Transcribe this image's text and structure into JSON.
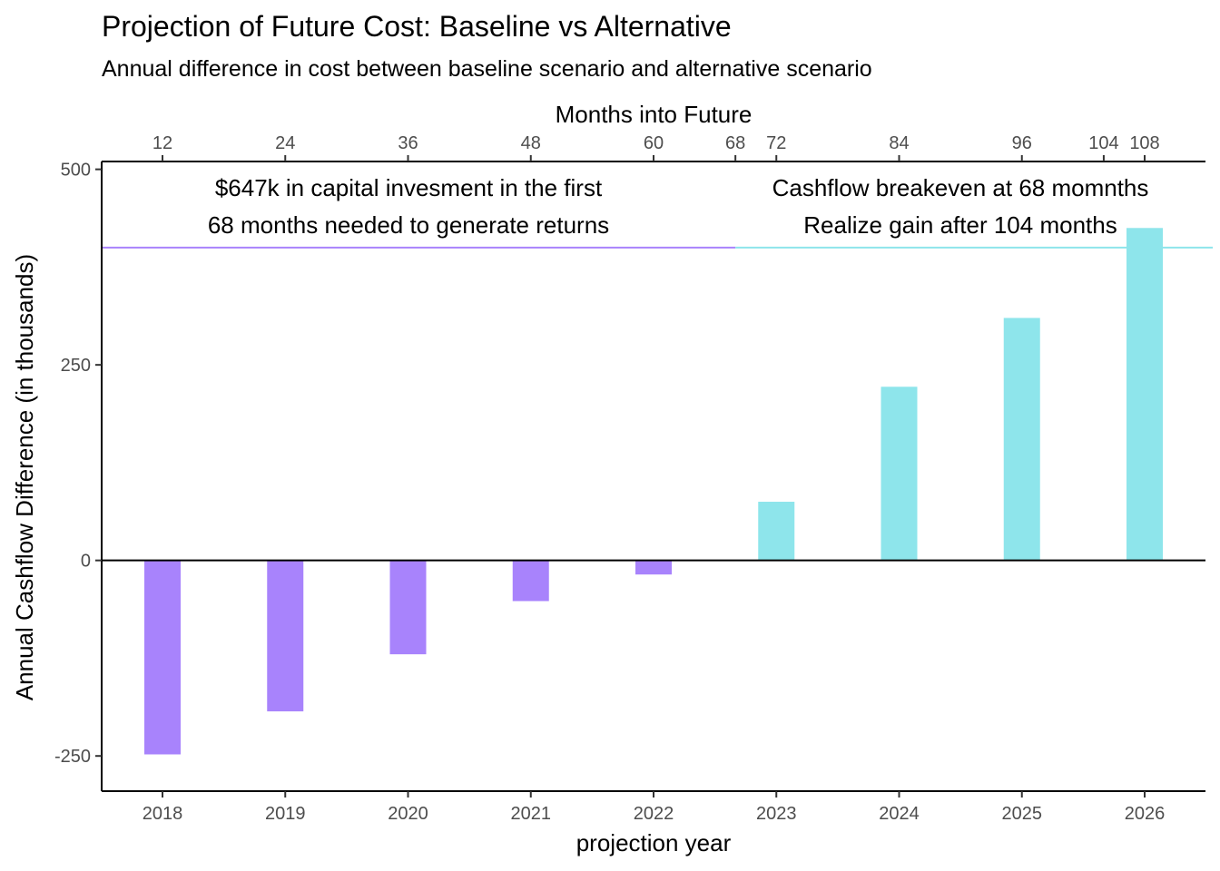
{
  "chart_data": {
    "type": "bar",
    "title": "Projection of Future Cost: Baseline vs Alternative",
    "subtitle": "Annual difference in cost between baseline scenario and alternative scenario",
    "xlabel": "projection year",
    "ylabel": "Annual Cashflow Difference (in thousands)",
    "top_axis_label": "Months into Future",
    "categories": [
      "2018",
      "2019",
      "2020",
      "2021",
      "2022",
      "2023",
      "2024",
      "2025",
      "2026"
    ],
    "values": [
      -248,
      -193,
      -120,
      -52,
      -18,
      75,
      222,
      310,
      425
    ],
    "ylim": [
      -295,
      510
    ],
    "yticks": [
      -250,
      0,
      250,
      500
    ],
    "ytick_labels": [
      "-250",
      "0",
      "250",
      "500"
    ],
    "top_ticks": [
      12,
      24,
      36,
      48,
      60,
      68,
      72,
      84,
      96,
      104,
      108
    ],
    "top_tick_labels": [
      "12",
      "24",
      "36",
      "48",
      "60",
      "68",
      "72",
      "84",
      "96",
      "104",
      "108"
    ],
    "colors": {
      "negative": "#a883fc",
      "positive": "#8ee5eb",
      "zero_line": "#000000"
    },
    "reference_line": {
      "y": 400,
      "split_month": 68
    },
    "annotations": {
      "left": {
        "line1": "$647k in capital invesment in the first",
        "line2": "68  months needed to generate returns"
      },
      "right": {
        "line1": "Cashflow breakeven at 68 momnths",
        "line2": "Realize gain after 104 months"
      }
    }
  }
}
